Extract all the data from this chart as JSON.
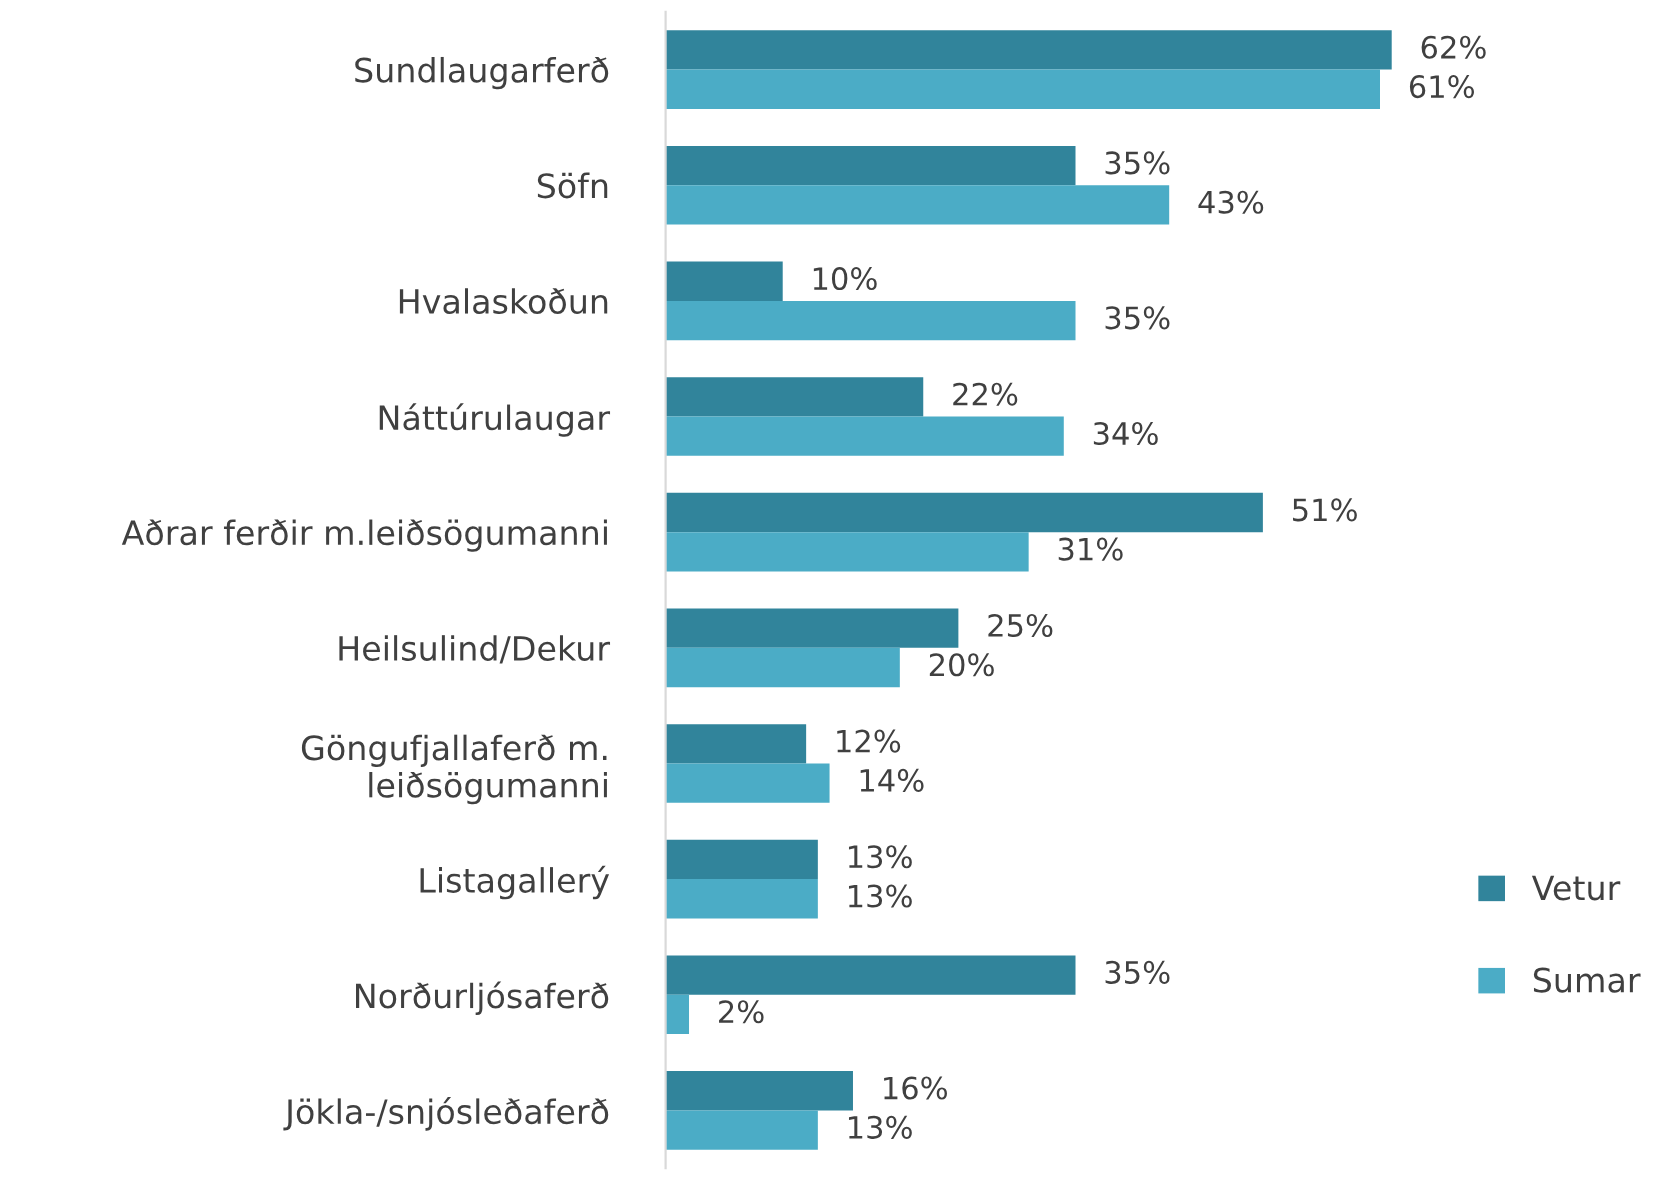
{
  "chart_data": {
    "type": "bar",
    "orientation": "horizontal",
    "categories": [
      "Sundlaugarferð",
      "Söfn",
      "Hvalaskoðun",
      "Náttúrulaugar",
      "Aðrar ferðir m.leiðsögumanni",
      "Heilsulind/Dekur",
      "Göngufjallaferð m.\nleiðsögumanni",
      "Listagallerý",
      "Norðurljósaferð",
      "Jökla-/snjósleðaferð"
    ],
    "series": [
      {
        "name": "Vetur",
        "color": "#31849b",
        "values": [
          62,
          35,
          10,
          22,
          51,
          25,
          12,
          13,
          35,
          16
        ],
        "value_labels": [
          "62%",
          "35%",
          "10%",
          "22%",
          "51%",
          "25%",
          "12%",
          "13%",
          "35%",
          "16%"
        ]
      },
      {
        "name": "Sumar",
        "color": "#4bacc6",
        "values": [
          61,
          43,
          35,
          34,
          31,
          20,
          14,
          13,
          2,
          13
        ],
        "value_labels": [
          "61%",
          "43%",
          "35%",
          "34%",
          "31%",
          "20%",
          "14%",
          "13%",
          "2%",
          "13%"
        ]
      }
    ],
    "legend": "right"
  }
}
